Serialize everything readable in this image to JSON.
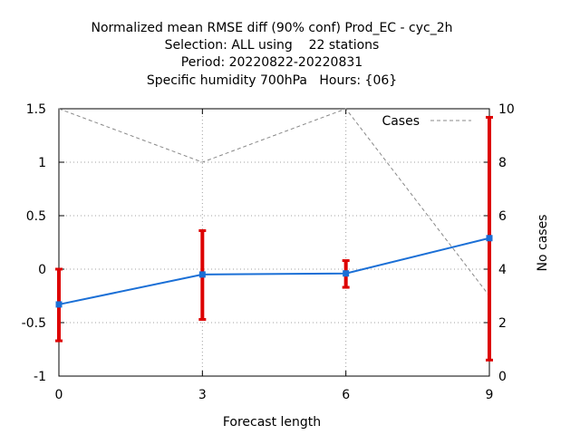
{
  "chart_data": {
    "type": "line",
    "title_lines": [
      "Normalized mean RMSE diff (90% conf) Prod_EC - cyc_2h",
      "Selection: ALL using    22 stations",
      "Period: 20220822-20220831",
      "Specific humidity 700hPa   Hours: {06}"
    ],
    "xlabel": "Forecast length",
    "ylabel": "",
    "y2label": "No cases",
    "x": [
      0,
      3,
      6,
      9
    ],
    "xlim": [
      0,
      9
    ],
    "ylim": [
      -1,
      1.5
    ],
    "y2lim": [
      0,
      10
    ],
    "xticks": [
      "0",
      "3",
      "6",
      "9"
    ],
    "yticks": [
      "-1",
      "-0.5",
      "0",
      "0.5",
      "1",
      "1.5"
    ],
    "y2ticks": [
      "0",
      "2",
      "4",
      "6",
      "8",
      "10"
    ],
    "grid": true,
    "legend_position": "top-right",
    "series": [
      {
        "values": [
          -0.33,
          -0.05,
          -0.04,
          0.29
        ],
        "err_low": [
          -0.67,
          -0.47,
          -0.17,
          -0.85
        ],
        "err_high": [
          0.0,
          0.36,
          0.08,
          1.42
        ],
        "axis": "y1",
        "color": "#1a6fd6",
        "error_color": "#dd0000"
      },
      {
        "name": "Cases",
        "values": [
          10,
          8,
          10,
          3
        ],
        "axis": "y2",
        "color": "#888888",
        "style": "dashed"
      }
    ]
  }
}
